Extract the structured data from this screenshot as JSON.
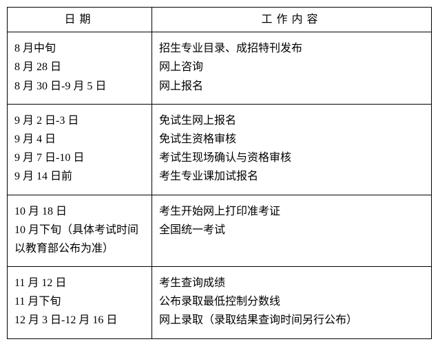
{
  "table": {
    "headers": {
      "date": "日期",
      "content": "工作内容"
    },
    "rows": [
      {
        "dates": [
          "8 月中旬",
          "8 月 28 日",
          "8 月 30 日-9 月 5 日"
        ],
        "contents": [
          "招生专业目录、成招特刊发布",
          "网上咨询",
          "网上报名"
        ]
      },
      {
        "dates": [
          "9 月 2 日-3 日",
          "9 月 4 日",
          "9 月 7 日-10 日",
          "9 月 14 日前"
        ],
        "contents": [
          "免试生网上报名",
          "免试生资格审核",
          "考试生现场确认与资格审核",
          "考生专业课加试报名"
        ]
      },
      {
        "dates": [
          "10 月 18 日",
          "10 月下旬（具体考试时间以教育部公布为准）"
        ],
        "contents": [
          "考生开始网上打印准考证",
          "全国统一考试"
        ]
      },
      {
        "dates": [
          "11 月 12 日",
          "11 月下旬",
          "12 月 3 日-12 月 16 日"
        ],
        "contents": [
          "考生查询成绩",
          "公布录取最低控制分数线",
          "网上录取（录取结果查询时间另行公布）"
        ]
      }
    ],
    "colors": {
      "border": "#000000",
      "text": "#000000",
      "background": "#ffffff"
    },
    "font_size": 16
  }
}
